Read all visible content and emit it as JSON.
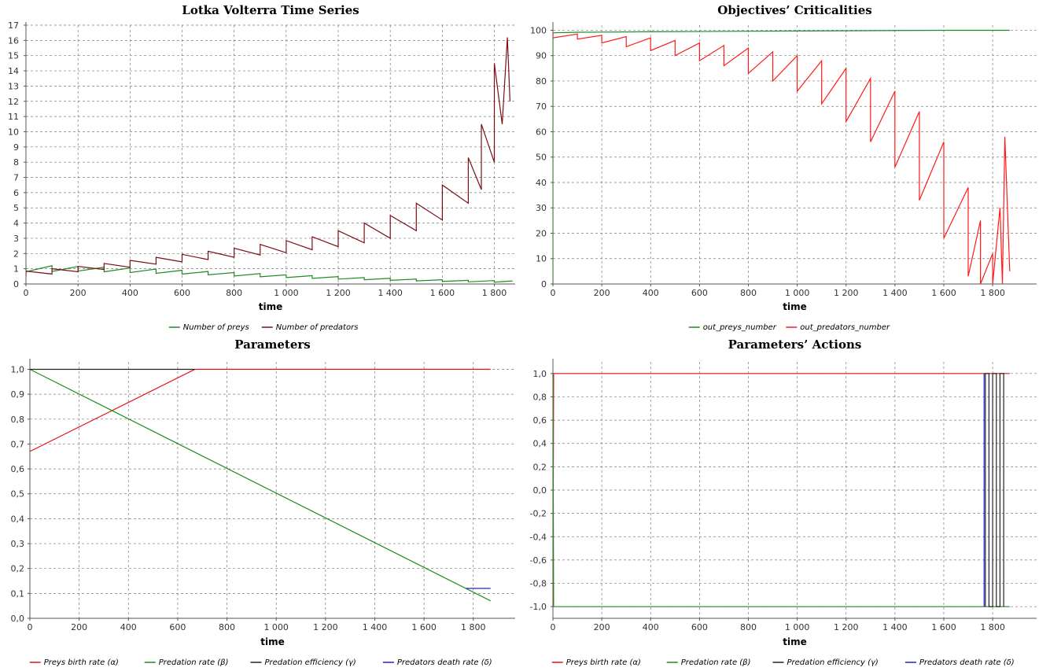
{
  "chart_data": [
    {
      "id": "lotka",
      "type": "line",
      "title": "Lotka Volterra Time Series",
      "xlabel": "time",
      "xlim": [
        0,
        1880
      ],
      "ylim": [
        0,
        17
      ],
      "xticks": [
        0,
        200,
        400,
        600,
        800,
        1000,
        1200,
        1400,
        1600,
        1800
      ],
      "xtick_labels": [
        "0",
        "200",
        "400",
        "600",
        "800",
        "1 000",
        "1 200",
        "1 400",
        "1 600",
        "1 800"
      ],
      "yticks": [
        0,
        1,
        2,
        3,
        4,
        5,
        6,
        7,
        8,
        9,
        10,
        11,
        12,
        13,
        14,
        15,
        16,
        17
      ],
      "ytick_labels": [
        "0",
        "1",
        "2",
        "3",
        "4",
        "5",
        "6",
        "7",
        "8",
        "9",
        "10",
        "11",
        "12",
        "13",
        "14",
        "15",
        "16",
        "17"
      ],
      "grid": true,
      "legend_position": "bottom",
      "series": [
        {
          "name": "Number of preys",
          "color": "#1f8a1f",
          "points": [
            [
              0,
              1.25
            ],
            [
              0,
              0.8
            ],
            [
              100,
              1.2
            ],
            [
              100,
              0.82
            ],
            [
              200,
              1.15
            ],
            [
              200,
              0.85
            ],
            [
              300,
              1.1
            ],
            [
              300,
              0.8
            ],
            [
              400,
              1.05
            ],
            [
              400,
              0.75
            ],
            [
              500,
              0.98
            ],
            [
              500,
              0.7
            ],
            [
              600,
              0.9
            ],
            [
              600,
              0.65
            ],
            [
              700,
              0.82
            ],
            [
              700,
              0.6
            ],
            [
              800,
              0.75
            ],
            [
              800,
              0.52
            ],
            [
              900,
              0.68
            ],
            [
              900,
              0.47
            ],
            [
              1000,
              0.6
            ],
            [
              1000,
              0.42
            ],
            [
              1100,
              0.55
            ],
            [
              1100,
              0.37
            ],
            [
              1200,
              0.48
            ],
            [
              1200,
              0.32
            ],
            [
              1300,
              0.42
            ],
            [
              1300,
              0.28
            ],
            [
              1400,
              0.37
            ],
            [
              1400,
              0.24
            ],
            [
              1500,
              0.32
            ],
            [
              1500,
              0.2
            ],
            [
              1600,
              0.28
            ],
            [
              1600,
              0.17
            ],
            [
              1700,
              0.24
            ],
            [
              1700,
              0.14
            ],
            [
              1800,
              0.22
            ],
            [
              1800,
              0.12
            ],
            [
              1870,
              0.2
            ]
          ]
        },
        {
          "name": "Number of predators",
          "color": "#7a0f14",
          "points": [
            [
              0,
              0.5
            ],
            [
              0,
              0.85
            ],
            [
              100,
              0.65
            ],
            [
              100,
              1.0
            ],
            [
              200,
              0.8
            ],
            [
              200,
              1.15
            ],
            [
              300,
              0.95
            ],
            [
              300,
              1.35
            ],
            [
              400,
              1.1
            ],
            [
              400,
              1.55
            ],
            [
              500,
              1.3
            ],
            [
              500,
              1.75
            ],
            [
              600,
              1.45
            ],
            [
              600,
              1.95
            ],
            [
              700,
              1.6
            ],
            [
              700,
              2.15
            ],
            [
              800,
              1.75
            ],
            [
              800,
              2.35
            ],
            [
              900,
              1.9
            ],
            [
              900,
              2.6
            ],
            [
              1000,
              2.05
            ],
            [
              1000,
              2.85
            ],
            [
              1100,
              2.25
            ],
            [
              1100,
              3.1
            ],
            [
              1200,
              2.45
            ],
            [
              1200,
              3.5
            ],
            [
              1300,
              2.7
            ],
            [
              1300,
              4.0
            ],
            [
              1400,
              3.0
            ],
            [
              1400,
              4.5
            ],
            [
              1500,
              3.5
            ],
            [
              1500,
              5.3
            ],
            [
              1600,
              4.2
            ],
            [
              1600,
              6.5
            ],
            [
              1700,
              5.3
            ],
            [
              1700,
              8.3
            ],
            [
              1750,
              6.2
            ],
            [
              1750,
              10.5
            ],
            [
              1800,
              8.0
            ],
            [
              1800,
              14.5
            ],
            [
              1830,
              10.5
            ],
            [
              1850,
              16.2
            ],
            [
              1860,
              12.0
            ]
          ]
        }
      ]
    },
    {
      "id": "criticalities",
      "type": "line",
      "title": "Objectives’ Criticalities",
      "xlabel": "time",
      "xlim": [
        0,
        1980
      ],
      "ylim": [
        0,
        102
      ],
      "xticks": [
        0,
        200,
        400,
        600,
        800,
        1000,
        1200,
        1400,
        1600,
        1800
      ],
      "xtick_labels": [
        "0",
        "200",
        "400",
        "600",
        "800",
        "1 000",
        "1 200",
        "1 400",
        "1 600",
        "1 800"
      ],
      "yticks": [
        0,
        10,
        20,
        30,
        40,
        50,
        60,
        70,
        80,
        90,
        100
      ],
      "ytick_labels": [
        "0",
        "10",
        "20",
        "30",
        "40",
        "50",
        "60",
        "70",
        "80",
        "90",
        "100"
      ],
      "grid": true,
      "legend_position": "bottom",
      "series": [
        {
          "name": "out_preys_number",
          "color": "#1f8a1f",
          "points": [
            [
              0,
              0
            ],
            [
              0,
              99
            ],
            [
              100,
              99.2
            ],
            [
              400,
              99.4
            ],
            [
              800,
              99.6
            ],
            [
              1200,
              99.8
            ],
            [
              1600,
              100
            ],
            [
              1870,
              100
            ]
          ]
        },
        {
          "name": "out_predators_number",
          "color": "#ff1a1a",
          "points": [
            [
              0,
              99
            ],
            [
              0,
              97
            ],
            [
              100,
              98.5
            ],
            [
              100,
              96.5
            ],
            [
              200,
              98
            ],
            [
              200,
              95
            ],
            [
              300,
              97.5
            ],
            [
              300,
              93.5
            ],
            [
              400,
              97
            ],
            [
              400,
              92
            ],
            [
              500,
              96
            ],
            [
              500,
              90
            ],
            [
              600,
              95
            ],
            [
              600,
              88
            ],
            [
              700,
              94
            ],
            [
              700,
              86
            ],
            [
              800,
              93
            ],
            [
              800,
              83
            ],
            [
              900,
              91.5
            ],
            [
              900,
              80
            ],
            [
              1000,
              90
            ],
            [
              1000,
              76
            ],
            [
              1100,
              88
            ],
            [
              1100,
              71
            ],
            [
              1200,
              85
            ],
            [
              1200,
              64
            ],
            [
              1300,
              81
            ],
            [
              1300,
              56
            ],
            [
              1400,
              76
            ],
            [
              1400,
              46
            ],
            [
              1500,
              68
            ],
            [
              1500,
              33
            ],
            [
              1600,
              56
            ],
            [
              1600,
              18
            ],
            [
              1700,
              38
            ],
            [
              1700,
              3
            ],
            [
              1750,
              25
            ],
            [
              1750,
              0
            ],
            [
              1800,
              12
            ],
            [
              1800,
              0
            ],
            [
              1830,
              30
            ],
            [
              1840,
              0
            ],
            [
              1850,
              58
            ],
            [
              1870,
              5
            ]
          ]
        }
      ]
    },
    {
      "id": "parameters",
      "type": "line",
      "title": "Parameters",
      "xlabel": "time",
      "xlim": [
        0,
        1970
      ],
      "ylim": [
        0,
        1.03
      ],
      "xticks": [
        0,
        200,
        400,
        600,
        800,
        1000,
        1200,
        1400,
        1600,
        1800
      ],
      "xtick_labels": [
        "0",
        "200",
        "400",
        "600",
        "800",
        "1 000",
        "1 200",
        "1 400",
        "1 600",
        "1 800"
      ],
      "yticks": [
        0,
        0.1,
        0.2,
        0.3,
        0.4,
        0.5,
        0.6,
        0.7,
        0.8,
        0.9,
        1.0
      ],
      "ytick_labels": [
        "0,0",
        "0,1",
        "0,2",
        "0,3",
        "0,4",
        "0,5",
        "0,6",
        "0,7",
        "0,8",
        "0,9",
        "1,0"
      ],
      "grid": true,
      "legend_position": "bottom",
      "series": [
        {
          "name": "Preys birth rate (α)",
          "color": "#e01010",
          "points": [
            [
              0,
              0.67
            ],
            [
              670,
              1.0
            ],
            [
              1870,
              1.0
            ]
          ]
        },
        {
          "name": "Predation rate (β)",
          "color": "#1f8a1f",
          "points": [
            [
              0,
              1.0
            ],
            [
              1870,
              0.07
            ]
          ]
        },
        {
          "name": "Predation efficiency (γ)",
          "color": "#222222",
          "points": [
            [
              0,
              1.0
            ],
            [
              670,
              1.0
            ]
          ]
        },
        {
          "name": "Predators death rate (δ)",
          "color": "#2020d0",
          "points": [
            [
              1770,
              0.12
            ],
            [
              1870,
              0.12
            ]
          ]
        }
      ]
    },
    {
      "id": "actions",
      "type": "line",
      "title": "Parameters’ Actions",
      "xlabel": "time",
      "xlim": [
        0,
        1980
      ],
      "ylim": [
        -1.1,
        1.1
      ],
      "xticks": [
        0,
        200,
        400,
        600,
        800,
        1000,
        1200,
        1400,
        1600,
        1800
      ],
      "xtick_labels": [
        "0",
        "200",
        "400",
        "600",
        "800",
        "1 000",
        "1 200",
        "1 400",
        "1 600",
        "1 800"
      ],
      "yticks": [
        -1.0,
        -0.8,
        -0.6,
        -0.4,
        -0.2,
        0.0,
        0.2,
        0.4,
        0.6,
        0.8,
        1.0
      ],
      "ytick_labels": [
        "-1,0",
        "-0,8",
        "-0,6",
        "-0,4",
        "-0,2",
        "0,0",
        "0,2",
        "0,4",
        "0,6",
        "0,8",
        "1,0"
      ],
      "grid": true,
      "legend_position": "bottom",
      "series": [
        {
          "name": "Preys birth rate (α)",
          "color": "#e01010",
          "points": [
            [
              0,
              -1.0
            ],
            [
              3,
              1.0
            ],
            [
              1870,
              1.0
            ]
          ]
        },
        {
          "name": "Predation rate (β)",
          "color": "#1f8a1f",
          "points": [
            [
              0,
              1.0
            ],
            [
              3,
              -1.0
            ],
            [
              1870,
              -1.0
            ]
          ]
        },
        {
          "name": "Predation efficiency (γ)",
          "color": "#222222",
          "points": [
            [
              1770,
              -1.0
            ],
            [
              1770,
              1.0
            ],
            [
              1785,
              1.0
            ],
            [
              1785,
              -1.0
            ],
            [
              1800,
              -1.0
            ],
            [
              1800,
              1.0
            ],
            [
              1815,
              1.0
            ],
            [
              1815,
              -1.0
            ],
            [
              1830,
              -1.0
            ],
            [
              1830,
              1.0
            ],
            [
              1845,
              1.0
            ],
            [
              1845,
              -1.0
            ]
          ]
        },
        {
          "name": "Predators death rate (δ)",
          "color": "#2020d0",
          "points": [
            [
              1765,
              -1.0
            ],
            [
              1765,
              1.0
            ]
          ]
        }
      ]
    }
  ]
}
